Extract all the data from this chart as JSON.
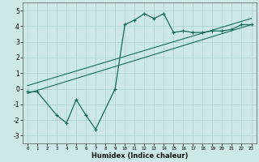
{
  "title": "",
  "xlabel": "Humidex (Indice chaleur)",
  "bg_color": "#cce8e8",
  "grid_color": "#aacfcf",
  "line_color": "#1a6b5a",
  "xlim": [
    -0.5,
    23.5
  ],
  "ylim": [
    -3.5,
    5.5
  ],
  "yticks": [
    -3,
    -2,
    -1,
    0,
    1,
    2,
    3,
    4,
    5
  ],
  "xticks": [
    0,
    1,
    2,
    3,
    4,
    5,
    6,
    7,
    8,
    9,
    10,
    11,
    12,
    13,
    14,
    15,
    16,
    17,
    18,
    19,
    20,
    21,
    22,
    23
  ],
  "curve1_x": [
    0,
    1,
    3,
    4,
    5,
    6,
    7,
    9,
    10,
    11,
    12,
    13,
    14,
    15,
    16,
    17,
    18,
    19,
    20,
    21,
    22,
    23
  ],
  "curve1_y": [
    -0.2,
    -0.2,
    -1.7,
    -2.2,
    -0.7,
    -1.7,
    -2.6,
    0.0,
    4.1,
    4.4,
    4.8,
    4.5,
    4.8,
    3.6,
    3.7,
    3.6,
    3.6,
    3.7,
    3.7,
    3.8,
    4.1,
    4.1
  ],
  "line2_x": [
    0,
    23
  ],
  "line2_y": [
    -0.3,
    4.1
  ],
  "line3_x": [
    0,
    23
  ],
  "line3_y": [
    0.2,
    4.5
  ],
  "label_fontsize": 5.5,
  "xlabel_fontsize": 6.0
}
